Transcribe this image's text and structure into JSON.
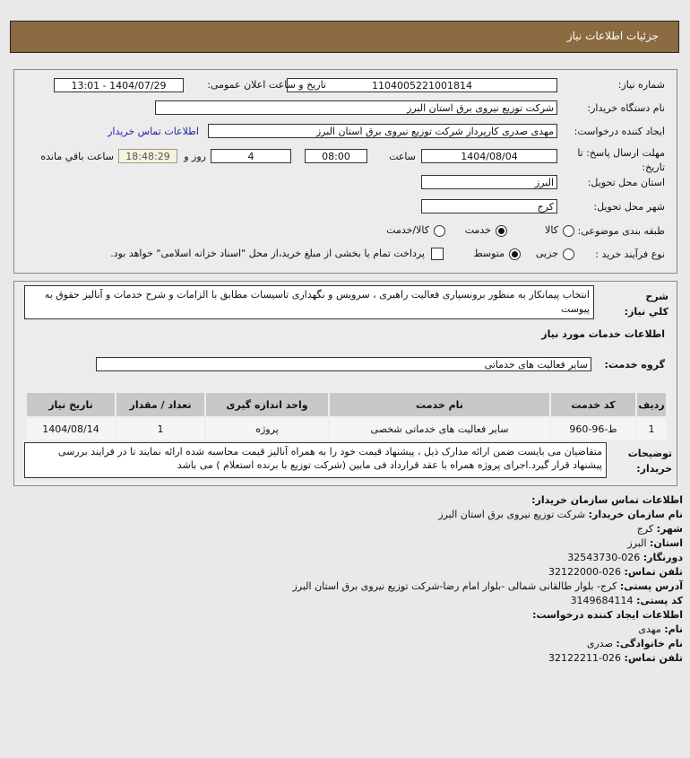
{
  "header": {
    "title": "جزئیات اطلاعات نیاز"
  },
  "form": {
    "need_number_label": "شماره نیاز:",
    "need_number": "1104005221001814",
    "announce_label": "تاریخ و ساعت اعلان عمومی:",
    "announce_value": "1404/07/29 - 13:01",
    "buyer_label": "نام دستگاه خریدار:",
    "buyer_value": "شرکت توزیع نیروی برق استان البرز",
    "creator_label": "ایجاد کننده درخواست:",
    "creator_value": "مهدی صدری کارپرداز شرکت توزیع نیروی برق استان البرز",
    "contact_link": "اطلاعات تماس خریدار",
    "deadline_label": "مهلت ارسال پاسخ: تا تاریخ:",
    "deadline_date": "1404/08/04",
    "time_label": "ساعت",
    "deadline_time": "08:00",
    "days": "4",
    "days_label": "روز و",
    "remaining": "18:48:29",
    "remaining_label": "ساعت باقي مانده",
    "province_label": "استان محل تحویل:",
    "province_value": "البرز",
    "city_label": "شهر محل تحویل:",
    "city_value": "کرج",
    "category_label": "طبقه بندی موضوعی:",
    "category_options": [
      "کالا",
      "خدمت",
      "کالا/خدمت"
    ],
    "category_selected": "خدمت",
    "process_label": "نوع فرآیند خرید :",
    "process_options": [
      "جزیی",
      "متوسط"
    ],
    "process_selected": "متوسط",
    "payment_text": "پرداخت تمام یا بخشی از مبلغ خرید،از محل \"اسناد خزانه اسلامی\" خواهد بود.",
    "payment_checked": false
  },
  "details": {
    "summary_label": "شرح کلي نیاز:",
    "summary": "انتخاب پیمانکار به منظور برونسپاری فعالیت راهبری ، سرویس و نگهداری تاسیسات مطابق با الزامات و شرح خدمات و آنالیز حقوق به پیوست",
    "services_title": "اطلاعات خدمات مورد نیاز",
    "group_label": "گروه خدمت:",
    "group_value": "سایر فعالیت های خدماتی",
    "table": {
      "headers": [
        "ردیف",
        "کد خدمت",
        "نام خدمت",
        "واحد اندازه گیری",
        "تعداد / مقدار",
        "تاریخ نیاز"
      ],
      "rows": [
        [
          "1",
          "ط-96-960",
          "سایر فعالیت های خدماتی شخصی",
          "پروژه",
          "1",
          "1404/08/14"
        ]
      ]
    },
    "notes_label": "توضیحات خریدار:",
    "notes": "متقاضیان می بایست ضمن ارائه مدارک ذیل ، پیشنهاد قیمت خود را به همراه آنالیز قیمت محاسبه شده ارائه نمایند تا در فرایند بررسی پیشنهاد قرار گیرد.اجرای پروژه همراه با عقد قرارداد فی مابین (شرکت توزیع با برنده استعلام ) می باشد"
  },
  "contact": {
    "title": "اطلاعات تماس سازمان خریدار:",
    "org_label": "نام سازمان خریدار:",
    "org": "شرکت توزیع نیروی برق استان البرز",
    "city_label": "شهر:",
    "city": "کرج",
    "province_label": "استان:",
    "province": "البرز",
    "fax_label": "دورنگار:",
    "fax": "026-32543730",
    "phone_label": "تلفن تماس:",
    "phone": "026-32122000",
    "address_label": "آدرس پستی:",
    "address": "کرج- بلوار طالقانی شمالی -بلوار امام رضا-شرکت توزیع نیروی برق استان البرز",
    "postal_label": "کد پستی:",
    "postal": "3149684114",
    "creator_title": "اطلاعات ایجاد کننده درخواست:",
    "name_label": "نام:",
    "name": "مهدی",
    "family_label": "نام خانوادگی:",
    "family": "صدری",
    "cphone_label": "تلفن تماس:",
    "cphone": "026-32122211"
  }
}
